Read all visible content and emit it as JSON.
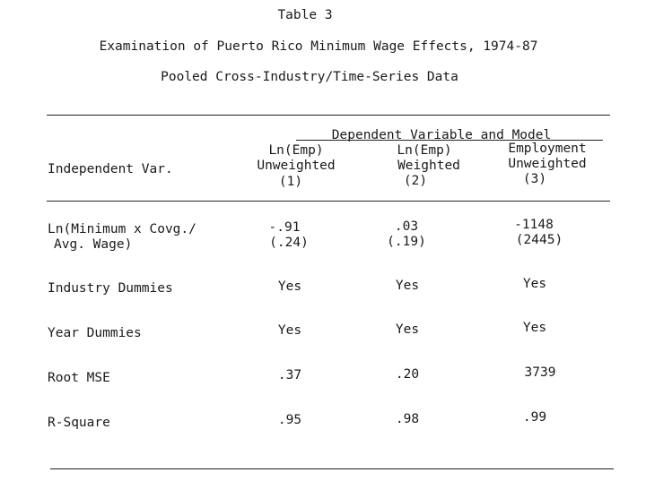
{
  "document": {
    "table_number": "Table 3",
    "title": "Examination of Puerto Rico Minimum Wage Effects, 1974-87",
    "subtitle": "Pooled Cross-Industry/Time-Series Data"
  },
  "table": {
    "spanner": "Dependent Variable and Model",
    "stub_header": "Independent Var.",
    "columns": [
      {
        "line1": "Ln(Emp)",
        "line2": "Unweighted",
        "number": "(1)"
      },
      {
        "line1": "Ln(Emp)",
        "line2": "Weighted",
        "number": "(2)"
      },
      {
        "line1": "Employment",
        "line2": "Unweighted",
        "number": "(3)"
      }
    ],
    "rows": [
      {
        "label_line1": "Ln(Minimum x Covg./",
        "label_line2": "Avg. Wage)",
        "values": [
          [
            "-.91",
            "(.24)"
          ],
          [
            ".03",
            "(.19)"
          ],
          [
            "-1148",
            "(2445)"
          ]
        ]
      },
      {
        "label_line1": "Industry Dummies",
        "values": [
          [
            "Yes"
          ],
          [
            "Yes"
          ],
          [
            "Yes"
          ]
        ]
      },
      {
        "label_line1": "Year Dummies",
        "values": [
          [
            "Yes"
          ],
          [
            "Yes"
          ],
          [
            "Yes"
          ]
        ]
      },
      {
        "label_line1": "Root MSE",
        "values": [
          [
            ".37"
          ],
          [
            ".20"
          ],
          [
            "3739"
          ]
        ]
      },
      {
        "label_line1": "R-Square",
        "values": [
          [
            ".95"
          ],
          [
            ".98"
          ],
          [
            ".99"
          ]
        ]
      }
    ]
  }
}
